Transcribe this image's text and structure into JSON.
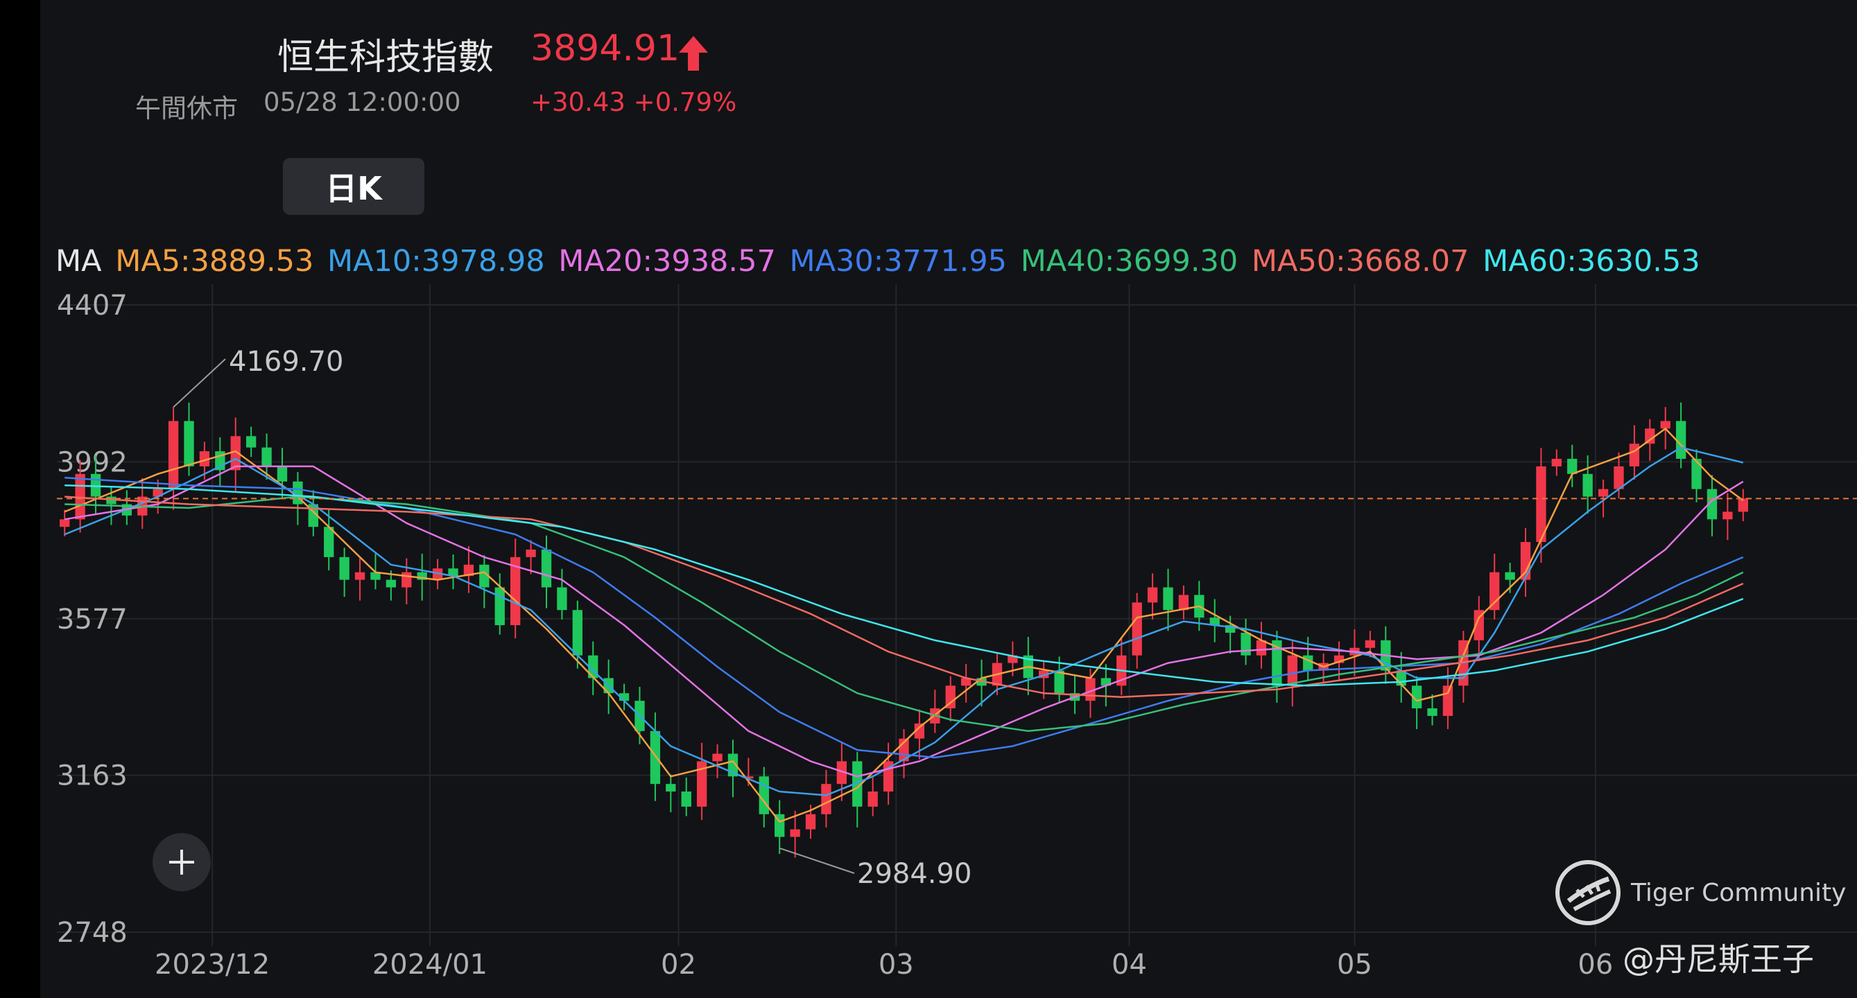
{
  "header": {
    "name": "恒生科技指數",
    "price": "3894.91",
    "status": "午間休市",
    "time": "05/28 12:00:00",
    "change": "+30.43 +0.79%",
    "up_color": "#f0384a"
  },
  "period_button": {
    "label": "日K"
  },
  "ma_legend": {
    "title": "MA",
    "items": [
      {
        "label": "MA5:3889.53",
        "color": "#f5a042"
      },
      {
        "label": "MA10:3978.98",
        "color": "#3aa0e8"
      },
      {
        "label": "MA20:3938.57",
        "color": "#e472e6"
      },
      {
        "label": "MA30:3771.95",
        "color": "#3d7df0"
      },
      {
        "label": "MA40:3699.30",
        "color": "#36c07a"
      },
      {
        "label": "MA50:3668.07",
        "color": "#f06b62"
      },
      {
        "label": "MA60:3630.53",
        "color": "#3ee6ee"
      }
    ]
  },
  "watermark": {
    "brand_icon": "tiger-logo-icon",
    "brand": "Tiger Community",
    "author": "@丹尼斯王子"
  },
  "chart_data": {
    "type": "candlestick",
    "ylim": [
      2748,
      4407
    ],
    "yticks": [
      4407,
      3992,
      3577,
      3163,
      2748
    ],
    "yticks_text": [
      "4407",
      "3992",
      "3577",
      "3163",
      "2748"
    ],
    "xticks": [
      "2023/12",
      "2024/01",
      "02",
      "03",
      "04",
      "05",
      "06"
    ],
    "xtick_positions": [
      9.5,
      23.5,
      39.5,
      53.5,
      68.5,
      83,
      98.5
    ],
    "high_label": "4169.70",
    "low_label": "2984.90",
    "high_index": 7,
    "low_index": 46,
    "last_price": 3894.91,
    "up_color": "#f0384a",
    "down_color": "#1ec85c",
    "closes": [
      3840,
      3960,
      3900,
      3880,
      3850,
      3900,
      3920,
      4100,
      3980,
      4020,
      3970,
      4060,
      4030,
      3980,
      3940,
      3880,
      3820,
      3740,
      3680,
      3700,
      3680,
      3660,
      3700,
      3680,
      3710,
      3690,
      3720,
      3660,
      3560,
      3740,
      3760,
      3660,
      3600,
      3480,
      3420,
      3380,
      3360,
      3280,
      3140,
      3120,
      3080,
      3200,
      3220,
      3160,
      3160,
      3060,
      3000,
      3020,
      3060,
      3140,
      3200,
      3080,
      3120,
      3200,
      3260,
      3300,
      3340,
      3400,
      3420,
      3400,
      3460,
      3480,
      3420,
      3440,
      3380,
      3360,
      3420,
      3400,
      3480,
      3620,
      3660,
      3600,
      3640,
      3580,
      3560,
      3540,
      3480,
      3520,
      3400,
      3480,
      3440,
      3460,
      3480,
      3500,
      3520,
      3440,
      3400,
      3340,
      3320,
      3400,
      3520,
      3600,
      3700,
      3680,
      3780,
      3980,
      4000,
      3960,
      3900,
      3920,
      3980,
      4040,
      4080,
      4100,
      4000,
      3920,
      3840,
      3860,
      3895
    ],
    "ma_series": [
      {
        "name": "MA5",
        "color": "#f5a042",
        "values": [
          [
            0,
            3860
          ],
          [
            6,
            3960
          ],
          [
            11,
            4020
          ],
          [
            15,
            3900
          ],
          [
            20,
            3700
          ],
          [
            24,
            3680
          ],
          [
            27,
            3700
          ],
          [
            31,
            3550
          ],
          [
            35,
            3380
          ],
          [
            39,
            3160
          ],
          [
            43,
            3200
          ],
          [
            46,
            3040
          ],
          [
            48,
            3070
          ],
          [
            51,
            3130
          ],
          [
            55,
            3290
          ],
          [
            59,
            3420
          ],
          [
            62,
            3450
          ],
          [
            66,
            3420
          ],
          [
            69,
            3580
          ],
          [
            73,
            3610
          ],
          [
            77,
            3520
          ],
          [
            81,
            3450
          ],
          [
            84,
            3490
          ],
          [
            87,
            3360
          ],
          [
            89,
            3380
          ],
          [
            91,
            3580
          ],
          [
            94,
            3700
          ],
          [
            97,
            3960
          ],
          [
            101,
            4020
          ],
          [
            103,
            4080
          ],
          [
            106,
            3950
          ],
          [
            108,
            3890
          ]
        ]
      },
      {
        "name": "MA10",
        "color": "#3aa0e8",
        "values": [
          [
            0,
            3800
          ],
          [
            6,
            3900
          ],
          [
            11,
            4000
          ],
          [
            16,
            3880
          ],
          [
            21,
            3720
          ],
          [
            25,
            3690
          ],
          [
            30,
            3600
          ],
          [
            35,
            3400
          ],
          [
            39,
            3240
          ],
          [
            43,
            3170
          ],
          [
            46,
            3120
          ],
          [
            49,
            3110
          ],
          [
            52,
            3160
          ],
          [
            56,
            3250
          ],
          [
            60,
            3390
          ],
          [
            64,
            3440
          ],
          [
            68,
            3510
          ],
          [
            72,
            3570
          ],
          [
            76,
            3550
          ],
          [
            80,
            3510
          ],
          [
            84,
            3480
          ],
          [
            87,
            3420
          ],
          [
            90,
            3420
          ],
          [
            92,
            3540
          ],
          [
            95,
            3760
          ],
          [
            98,
            3860
          ],
          [
            102,
            3980
          ],
          [
            104,
            4030
          ],
          [
            108,
            3990
          ]
        ]
      },
      {
        "name": "MA20",
        "color": "#e472e6",
        "values": [
          [
            0,
            3840
          ],
          [
            6,
            3880
          ],
          [
            11,
            3980
          ],
          [
            16,
            3980
          ],
          [
            22,
            3830
          ],
          [
            27,
            3740
          ],
          [
            32,
            3680
          ],
          [
            36,
            3560
          ],
          [
            40,
            3420
          ],
          [
            44,
            3280
          ],
          [
            48,
            3200
          ],
          [
            51,
            3160
          ],
          [
            55,
            3200
          ],
          [
            59,
            3270
          ],
          [
            63,
            3340
          ],
          [
            67,
            3400
          ],
          [
            71,
            3460
          ],
          [
            75,
            3490
          ],
          [
            79,
            3500
          ],
          [
            83,
            3490
          ],
          [
            87,
            3470
          ],
          [
            91,
            3480
          ],
          [
            95,
            3540
          ],
          [
            99,
            3640
          ],
          [
            103,
            3760
          ],
          [
            106,
            3890
          ],
          [
            108,
            3940
          ]
        ]
      },
      {
        "name": "MA30",
        "color": "#3d7df0",
        "values": [
          [
            0,
            3950
          ],
          [
            8,
            3930
          ],
          [
            15,
            3920
          ],
          [
            22,
            3870
          ],
          [
            29,
            3800
          ],
          [
            34,
            3700
          ],
          [
            38,
            3580
          ],
          [
            42,
            3450
          ],
          [
            46,
            3330
          ],
          [
            51,
            3230
          ],
          [
            56,
            3210
          ],
          [
            61,
            3240
          ],
          [
            66,
            3300
          ],
          [
            71,
            3360
          ],
          [
            76,
            3410
          ],
          [
            80,
            3440
          ],
          [
            85,
            3450
          ],
          [
            90,
            3460
          ],
          [
            95,
            3510
          ],
          [
            100,
            3590
          ],
          [
            104,
            3670
          ],
          [
            108,
            3740
          ]
        ]
      },
      {
        "name": "MA40",
        "color": "#36c07a",
        "values": [
          [
            0,
            3880
          ],
          [
            8,
            3870
          ],
          [
            15,
            3900
          ],
          [
            22,
            3880
          ],
          [
            30,
            3830
          ],
          [
            36,
            3740
          ],
          [
            41,
            3620
          ],
          [
            46,
            3490
          ],
          [
            51,
            3380
          ],
          [
            57,
            3310
          ],
          [
            62,
            3280
          ],
          [
            67,
            3300
          ],
          [
            72,
            3350
          ],
          [
            77,
            3390
          ],
          [
            82,
            3430
          ],
          [
            87,
            3460
          ],
          [
            92,
            3490
          ],
          [
            96,
            3530
          ],
          [
            101,
            3580
          ],
          [
            105,
            3640
          ],
          [
            108,
            3700
          ]
        ]
      },
      {
        "name": "MA50",
        "color": "#f06b62",
        "values": [
          [
            0,
            3900
          ],
          [
            8,
            3880
          ],
          [
            15,
            3870
          ],
          [
            22,
            3860
          ],
          [
            30,
            3840
          ],
          [
            36,
            3780
          ],
          [
            42,
            3690
          ],
          [
            48,
            3590
          ],
          [
            53,
            3490
          ],
          [
            58,
            3420
          ],
          [
            63,
            3380
          ],
          [
            68,
            3370
          ],
          [
            73,
            3380
          ],
          [
            78,
            3390
          ],
          [
            83,
            3420
          ],
          [
            88,
            3450
          ],
          [
            93,
            3480
          ],
          [
            98,
            3520
          ],
          [
            103,
            3580
          ],
          [
            108,
            3670
          ]
        ]
      },
      {
        "name": "MA60",
        "color": "#3ee6ee",
        "values": [
          [
            0,
            3930
          ],
          [
            8,
            3920
          ],
          [
            16,
            3900
          ],
          [
            24,
            3860
          ],
          [
            32,
            3820
          ],
          [
            38,
            3760
          ],
          [
            44,
            3680
          ],
          [
            50,
            3590
          ],
          [
            56,
            3520
          ],
          [
            62,
            3470
          ],
          [
            68,
            3440
          ],
          [
            74,
            3410
          ],
          [
            80,
            3400
          ],
          [
            86,
            3410
          ],
          [
            92,
            3440
          ],
          [
            98,
            3490
          ],
          [
            103,
            3550
          ],
          [
            108,
            3630
          ]
        ]
      }
    ]
  }
}
